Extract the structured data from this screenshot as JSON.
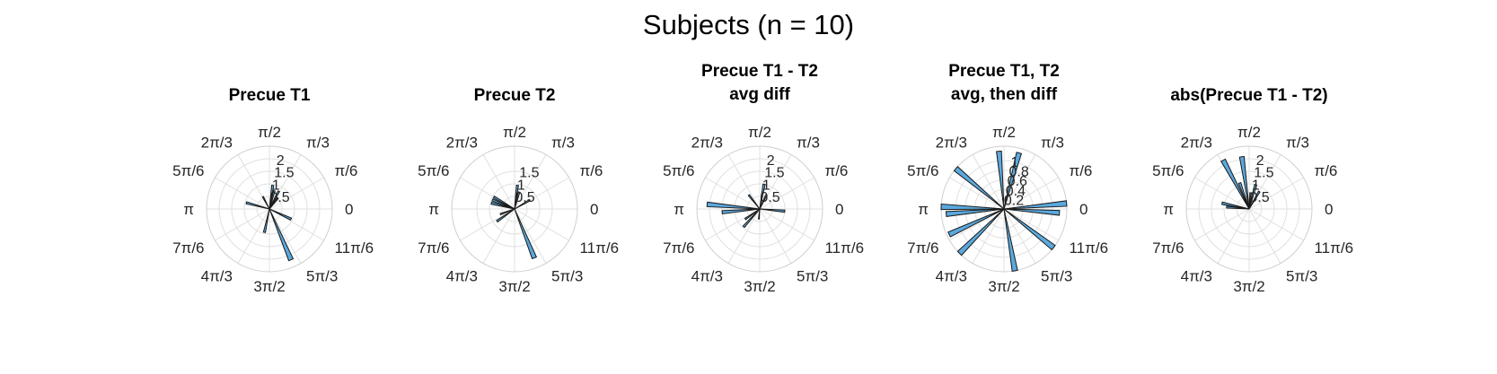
{
  "figure": {
    "title": "Subjects (n = 10)"
  },
  "theta_tick_labels": [
    "0",
    "π/6",
    "π/3",
    "π/2",
    "2π/3",
    "5π/6",
    "π",
    "7π/6",
    "4π/3",
    "3π/2",
    "5π/3",
    "11π/6"
  ],
  "bar_color": "#5aa9de",
  "chart_data": [
    {
      "type": "polar-histogram",
      "title": [
        "Precue T1"
      ],
      "rlim": [
        0,
        2.5
      ],
      "r_ticks": [
        "0.5",
        "1",
        "1.5",
        "2"
      ],
      "bins": [
        {
          "theta_deg": 75,
          "r": 0.75
        },
        {
          "theta_deg": 82,
          "r": 0.95
        },
        {
          "theta_deg": 62,
          "r": 0.8
        },
        {
          "theta_deg": 52,
          "r": 0.55
        },
        {
          "theta_deg": 118,
          "r": 0.55
        },
        {
          "theta_deg": 165,
          "r": 0.95
        },
        {
          "theta_deg": 335,
          "r": 0.95
        },
        {
          "theta_deg": 293,
          "r": 2.2
        },
        {
          "theta_deg": 258,
          "r": 0.95
        }
      ]
    },
    {
      "type": "polar-histogram",
      "title": [
        "Precue T2"
      ],
      "rlim": [
        0,
        2.5
      ],
      "r_ticks": [
        "0.5",
        "1",
        "1.5"
      ],
      "bins": [
        {
          "theta_deg": 83,
          "r": 0.95
        },
        {
          "theta_deg": 75,
          "r": 0.7
        },
        {
          "theta_deg": 150,
          "r": 0.95
        },
        {
          "theta_deg": 158,
          "r": 0.95
        },
        {
          "theta_deg": 166,
          "r": 0.95
        },
        {
          "theta_deg": 30,
          "r": 0.7
        },
        {
          "theta_deg": 200,
          "r": 0.6
        },
        {
          "theta_deg": 215,
          "r": 0.85
        },
        {
          "theta_deg": 292,
          "r": 2.1
        }
      ]
    },
    {
      "type": "polar-histogram",
      "title": [
        "Precue T1 - T2",
        "avg diff"
      ],
      "rlim": [
        0,
        2.5
      ],
      "r_ticks": [
        "0.5",
        "1",
        "1.5",
        "2"
      ],
      "bins": [
        {
          "theta_deg": 80,
          "r": 1.0
        },
        {
          "theta_deg": 65,
          "r": 0.6
        },
        {
          "theta_deg": 128,
          "r": 0.7
        },
        {
          "theta_deg": 175,
          "r": 2.1
        },
        {
          "theta_deg": 185,
          "r": 1.5
        },
        {
          "theta_deg": 355,
          "r": 1.0
        },
        {
          "theta_deg": 215,
          "r": 0.7
        },
        {
          "theta_deg": 228,
          "r": 0.95
        },
        {
          "theta_deg": 265,
          "r": 0.4
        }
      ]
    },
    {
      "type": "polar-histogram",
      "title": [
        "Precue T1, T2",
        "avg, then diff"
      ],
      "rlim": [
        0,
        1.3
      ],
      "r_ticks": [
        "0.2",
        "0.4",
        "0.6",
        "0.8",
        "1"
      ],
      "bins": [
        {
          "theta_deg": 95,
          "r": 1.2
        },
        {
          "theta_deg": 75,
          "r": 1.2
        },
        {
          "theta_deg": 140,
          "r": 1.3
        },
        {
          "theta_deg": 178,
          "r": 1.3
        },
        {
          "theta_deg": 185,
          "r": 1.2
        },
        {
          "theta_deg": 5,
          "r": 1.3
        },
        {
          "theta_deg": 356,
          "r": 1.15
        },
        {
          "theta_deg": 205,
          "r": 1.25
        },
        {
          "theta_deg": 225,
          "r": 1.3
        },
        {
          "theta_deg": 280,
          "r": 1.3
        },
        {
          "theta_deg": 322,
          "r": 1.3
        }
      ]
    },
    {
      "type": "polar-histogram",
      "title": [
        "abs(Precue T1 - T2)"
      ],
      "rlim": [
        0,
        2.5
      ],
      "r_ticks": [
        "0.5",
        "1",
        "1.5",
        "2"
      ],
      "bins": [
        {
          "theta_deg": 118,
          "r": 2.2
        },
        {
          "theta_deg": 98,
          "r": 2.1
        },
        {
          "theta_deg": 75,
          "r": 1.0
        },
        {
          "theta_deg": 60,
          "r": 0.8
        },
        {
          "theta_deg": 85,
          "r": 0.65
        },
        {
          "theta_deg": 110,
          "r": 1.1
        },
        {
          "theta_deg": 168,
          "r": 1.1
        },
        {
          "theta_deg": 175,
          "r": 0.9
        }
      ]
    }
  ]
}
